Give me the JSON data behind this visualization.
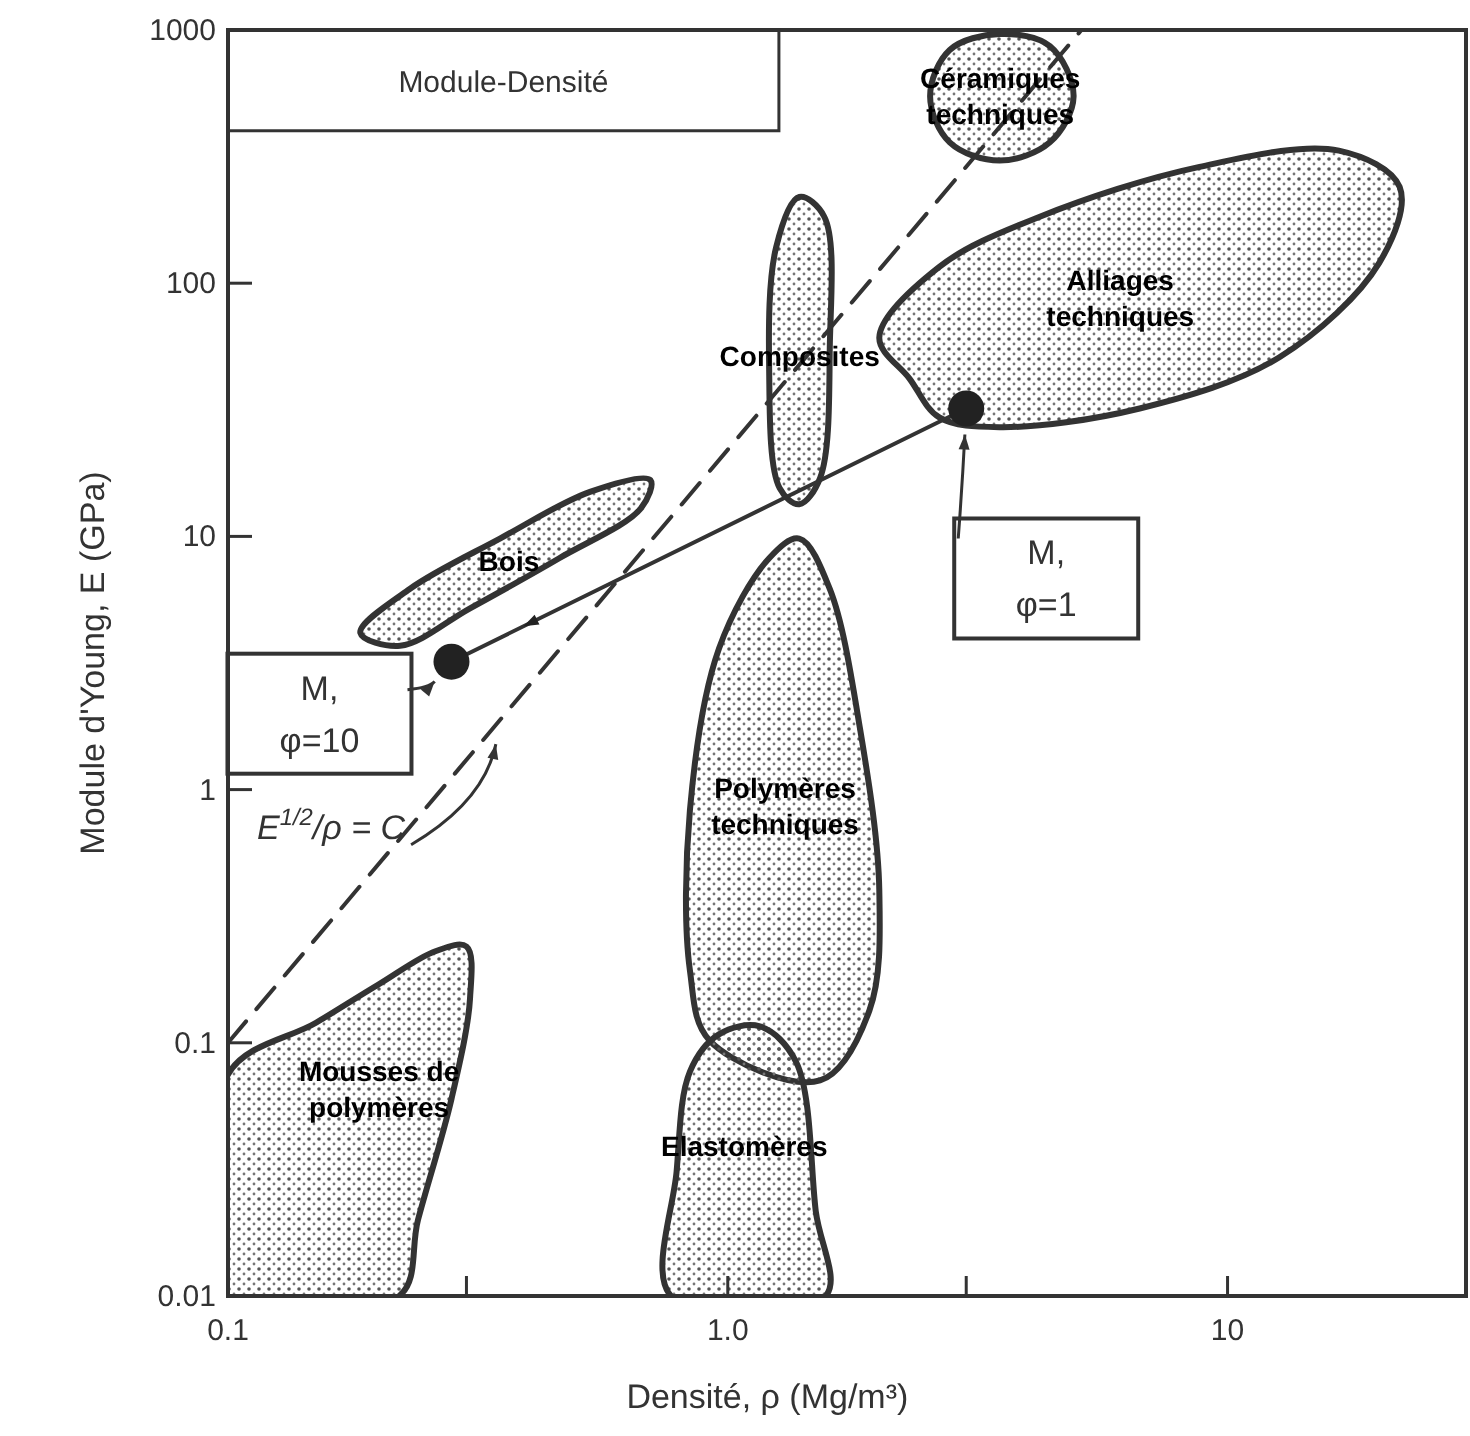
{
  "chart_data": {
    "type": "line",
    "title": "Module-Densité",
    "xlabel": "Densité, ρ (Mg/m³)",
    "ylabel": "Module d'Young, E (GPa)",
    "log": "xy",
    "legend": false,
    "grid": false,
    "xlim": [
      0.1,
      30
    ],
    "xticks": [
      0.1,
      {
        "value": 0.3,
        "label": null
      },
      {
        "value": 1,
        "label": "1.0"
      },
      {
        "value": 3,
        "label": null
      },
      10
    ],
    "ylim": [
      0.01,
      1000
    ],
    "yticks": [
      0.01,
      0.1,
      1,
      10,
      100,
      1000
    ],
    "series": [
      {
        "type": "area",
        "name": "Mousses de polymères",
        "color": "#333333",
        "x": [
          0.1,
          0.15,
          0.2,
          0.26,
          0.3,
          0.305,
          0.28,
          0.24,
          0.22,
          0.1
        ],
        "values": [
          0.075,
          0.12,
          0.17,
          0.23,
          0.24,
          0.15,
          0.06,
          0.02,
          0.01,
          0.01
        ]
      },
      {
        "type": "area",
        "name": "Polymères techniques",
        "color": "#333333",
        "x": [
          0.84,
          0.84,
          0.96,
          1.21,
          1.39,
          1.6,
          1.84,
          2.01,
          1.92,
          1.53,
          0.92
        ],
        "values": [
          0.193,
          0.83,
          3.6,
          8.2,
          9.8,
          6.2,
          1.73,
          0.4,
          0.134,
          0.071,
          0.102
        ]
      },
      {
        "type": "area",
        "name": "Elastomères",
        "color": "#333333",
        "x": [
          0.77,
          0.79,
          0.84,
          0.96,
          1.16,
          1.37,
          1.5,
          1.57
        ],
        "values": [
          0.01,
          0.031,
          0.077,
          0.108,
          0.116,
          0.084,
          0.0216,
          0.01
        ]
      },
      {
        "type": "area",
        "name": "Bois",
        "color": "#333333",
        "x": [
          0.184,
          0.231,
          0.35,
          0.53,
          0.7,
          0.67,
          0.46,
          0.305,
          0.221
        ],
        "values": [
          4.16,
          6.2,
          9.8,
          15,
          16.7,
          12.9,
          8.2,
          5.2,
          3.7
        ]
      },
      {
        "type": "area",
        "name": "Composites",
        "color": "#333333",
        "x": [
          1.27,
          1.21,
          1.25,
          1.39,
          1.56,
          1.6,
          1.53,
          1.39
        ],
        "values": [
          15.5,
          46,
          139,
          219,
          183,
          56,
          17,
          13.4
        ]
      },
      {
        "type": "area",
        "name": "Céramiques techniques",
        "color": "#333333",
        "x": [
          2.54,
          2.78,
          3.5,
          4.41,
          4.92,
          4.41,
          3.5,
          2.78
        ],
        "values": [
          547,
          834,
          964,
          864,
          547,
          360,
          305,
          360
        ]
      },
      {
        "type": "area",
        "name": "Alliages techniques",
        "color": "#333333",
        "x": [
          2.01,
          2.65,
          4.21,
          8.79,
          16.7,
          22.1,
          20.1,
          12.7,
          6.67,
          3.5,
          2.65,
          2.31
        ],
        "values": [
          61,
          116,
          183,
          288,
          334,
          240,
          120,
          51,
          32,
          27,
          29.5,
          42
        ]
      },
      {
        "line_style": "dashed",
        "color": "#333333",
        "x": [
          0.1,
          5.1
        ],
        "values": [
          0.1,
          1000
        ]
      },
      {
        "line_style": "solid",
        "color": "#333333",
        "x": [
          3,
          0.28
        ],
        "values": [
          32,
          3.2
        ]
      },
      {
        "type": "scatter",
        "marker": "circle",
        "color": "#222222",
        "x": [
          3,
          0.28
        ],
        "values": [
          32,
          3.2
        ]
      }
    ],
    "annotations": [
      "M,\nφ=1",
      "M,\nφ=10",
      "E$^{1/2}$/ρ = C"
    ]
  }
}
